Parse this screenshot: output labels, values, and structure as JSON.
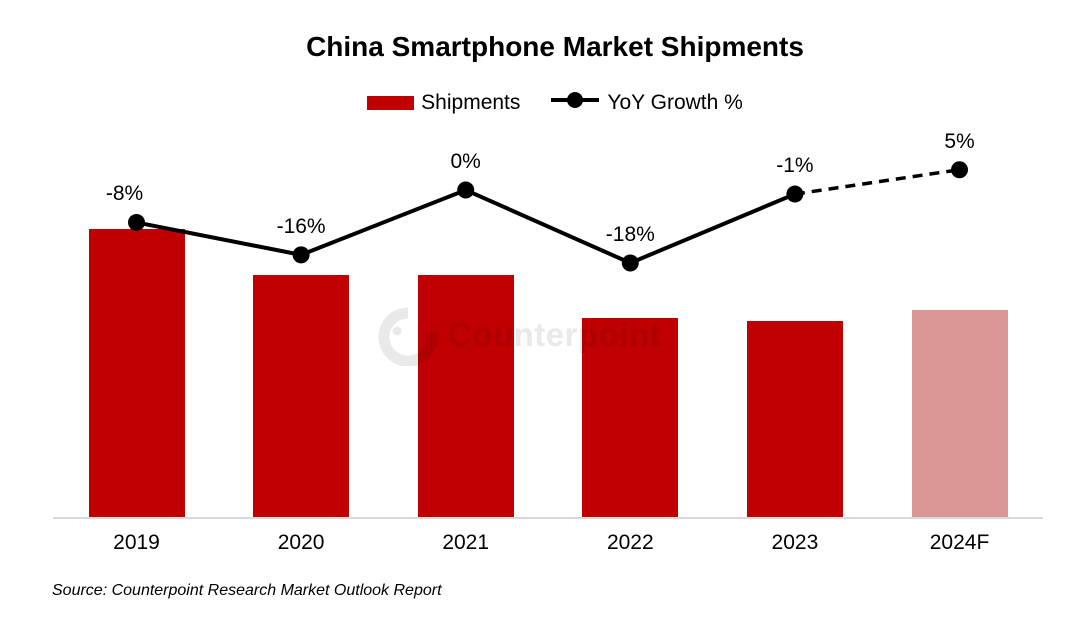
{
  "title": "China Smartphone Market Shipments",
  "legend": {
    "items": [
      {
        "label": "Shipments",
        "marker": "bar-swatch"
      },
      {
        "label": "YoY Growth %",
        "marker": "line-dot-swatch"
      }
    ]
  },
  "watermark": {
    "text": "Counterpoint",
    "logo": "counterpoint-ring-logo"
  },
  "source": {
    "text": "Source: Counterpoint Research Market Outlook Report"
  },
  "colors": {
    "bar": "#C00000",
    "bar_forecast": "#D99694",
    "line": "#000000",
    "marker": "#000000",
    "axis_line": "#D9D9D9",
    "watermark": "#E9E9E9",
    "text": "#000000"
  },
  "chart_data": {
    "type": "bar",
    "subtype": "bar+line combo",
    "title": "China Smartphone Market Shipments",
    "categories": [
      "2019",
      "2020",
      "2021",
      "2022",
      "2023",
      "2024F"
    ],
    "series": [
      {
        "name": "Shipments",
        "type": "bar",
        "note": "no numeric axis shown; bar sizes indexed to 2019 = 100, derived from YoY growth labels",
        "values_indexed_2019_100": [
          100,
          84,
          84,
          69,
          68,
          72
        ],
        "forecast_category": "2024F"
      },
      {
        "name": "YoY Growth %",
        "type": "line",
        "values_pct": [
          -8,
          -16,
          0,
          -18,
          -1,
          5
        ],
        "point_labels": [
          "-8%",
          "-16%",
          "0%",
          "-18%",
          "-1%",
          "5%"
        ],
        "dashed_segment_between": [
          "2023",
          "2024F"
        ]
      }
    ],
    "legend_position": "top",
    "grid": false,
    "y_axis_visible": false,
    "x_axis_line": true
  }
}
